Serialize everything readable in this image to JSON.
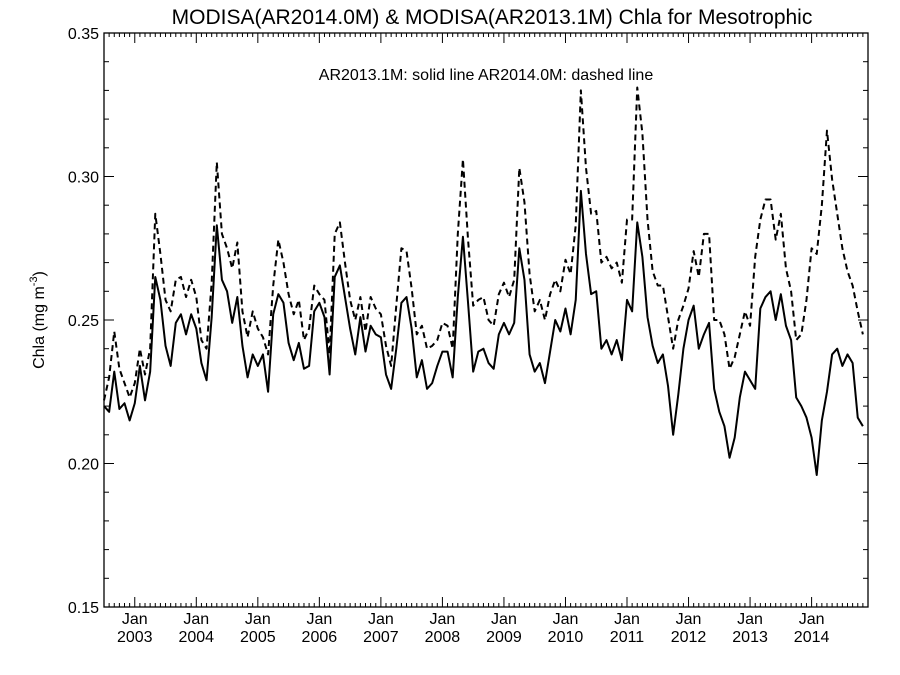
{
  "chart_data": {
    "type": "line",
    "title": "MODISA(AR2014.0M) & MODISA(AR2013.1M)  Chla for Mesotrophic",
    "annotation": "AR2013.1M: solid line   AR2014.0M: dashed line",
    "ylabel": {
      "text": "Chla (mg m",
      "sup": "-3",
      "close": ")"
    },
    "xlabel": "",
    "ylim": [
      0.15,
      0.35
    ],
    "yticks": [
      "0.15",
      "0.20",
      "0.25",
      "0.30",
      "0.35"
    ],
    "yminor_step": 0.01,
    "x_range": [
      "2002-07",
      "2014-12"
    ],
    "xtick_month": "Jan",
    "xticks": [
      "2003",
      "2004",
      "2005",
      "2006",
      "2007",
      "2008",
      "2009",
      "2010",
      "2011",
      "2012",
      "2013",
      "2014"
    ],
    "grid": false,
    "colors": {
      "axes": "#000000",
      "lines": "#000000"
    },
    "series": [
      {
        "style": "solid",
        "start": "2002-07",
        "values": [
          0.22,
          0.218,
          0.232,
          0.219,
          0.221,
          0.215,
          0.221,
          0.234,
          0.222,
          0.232,
          0.265,
          0.257,
          0.241,
          0.234,
          0.249,
          0.252,
          0.245,
          0.252,
          0.247,
          0.235,
          0.229,
          0.251,
          0.283,
          0.264,
          0.26,
          0.249,
          0.258,
          0.241,
          0.23,
          0.238,
          0.234,
          0.238,
          0.225,
          0.252,
          0.259,
          0.256,
          0.242,
          0.236,
          0.242,
          0.233,
          0.234,
          0.253,
          0.256,
          0.251,
          0.231,
          0.265,
          0.269,
          0.258,
          0.247,
          0.238,
          0.251,
          0.239,
          0.248,
          0.245,
          0.244,
          0.231,
          0.226,
          0.24,
          0.256,
          0.258,
          0.247,
          0.23,
          0.236,
          0.226,
          0.228,
          0.234,
          0.239,
          0.239,
          0.23,
          0.258,
          0.279,
          0.256,
          0.232,
          0.239,
          0.24,
          0.235,
          0.233,
          0.245,
          0.249,
          0.245,
          0.249,
          0.275,
          0.264,
          0.238,
          0.232,
          0.235,
          0.228,
          0.239,
          0.25,
          0.246,
          0.254,
          0.245,
          0.257,
          0.295,
          0.273,
          0.259,
          0.26,
          0.24,
          0.243,
          0.238,
          0.243,
          0.236,
          0.257,
          0.253,
          0.284,
          0.272,
          0.251,
          0.241,
          0.235,
          0.238,
          0.227,
          0.21,
          0.224,
          0.24,
          0.25,
          0.255,
          0.24,
          0.245,
          0.249,
          0.226,
          0.218,
          0.213,
          0.202,
          0.209,
          0.223,
          0.232,
          0.229,
          0.226,
          0.254,
          0.258,
          0.26,
          0.25,
          0.259,
          0.248,
          0.243,
          0.223,
          0.22,
          0.216,
          0.209,
          0.196,
          0.215,
          0.225,
          0.238,
          0.24,
          0.234,
          0.238,
          0.235,
          0.216,
          0.213
        ]
      },
      {
        "style": "dashed",
        "start": "2002-07",
        "values": [
          0.222,
          0.23,
          0.246,
          0.233,
          0.228,
          0.223,
          0.228,
          0.24,
          0.231,
          0.24,
          0.287,
          0.273,
          0.257,
          0.253,
          0.264,
          0.265,
          0.258,
          0.264,
          0.258,
          0.243,
          0.24,
          0.263,
          0.305,
          0.28,
          0.275,
          0.268,
          0.277,
          0.253,
          0.244,
          0.253,
          0.247,
          0.244,
          0.238,
          0.262,
          0.278,
          0.27,
          0.259,
          0.252,
          0.257,
          0.243,
          0.247,
          0.262,
          0.259,
          0.257,
          0.238,
          0.28,
          0.284,
          0.27,
          0.257,
          0.25,
          0.258,
          0.246,
          0.258,
          0.254,
          0.252,
          0.241,
          0.234,
          0.255,
          0.275,
          0.274,
          0.261,
          0.245,
          0.248,
          0.24,
          0.241,
          0.243,
          0.249,
          0.248,
          0.24,
          0.28,
          0.306,
          0.278,
          0.255,
          0.257,
          0.258,
          0.25,
          0.248,
          0.259,
          0.263,
          0.258,
          0.264,
          0.303,
          0.291,
          0.266,
          0.253,
          0.257,
          0.25,
          0.259,
          0.264,
          0.26,
          0.271,
          0.266,
          0.283,
          0.33,
          0.303,
          0.287,
          0.288,
          0.27,
          0.272,
          0.268,
          0.27,
          0.263,
          0.285,
          0.285,
          0.331,
          0.315,
          0.285,
          0.267,
          0.262,
          0.262,
          0.251,
          0.24,
          0.25,
          0.255,
          0.261,
          0.274,
          0.265,
          0.28,
          0.28,
          0.25,
          0.25,
          0.245,
          0.233,
          0.237,
          0.245,
          0.253,
          0.248,
          0.272,
          0.285,
          0.292,
          0.292,
          0.278,
          0.287,
          0.268,
          0.26,
          0.243,
          0.245,
          0.257,
          0.275,
          0.273,
          0.29,
          0.316,
          0.299,
          0.287,
          0.275,
          0.267,
          0.262,
          0.253,
          0.245
        ]
      }
    ]
  }
}
